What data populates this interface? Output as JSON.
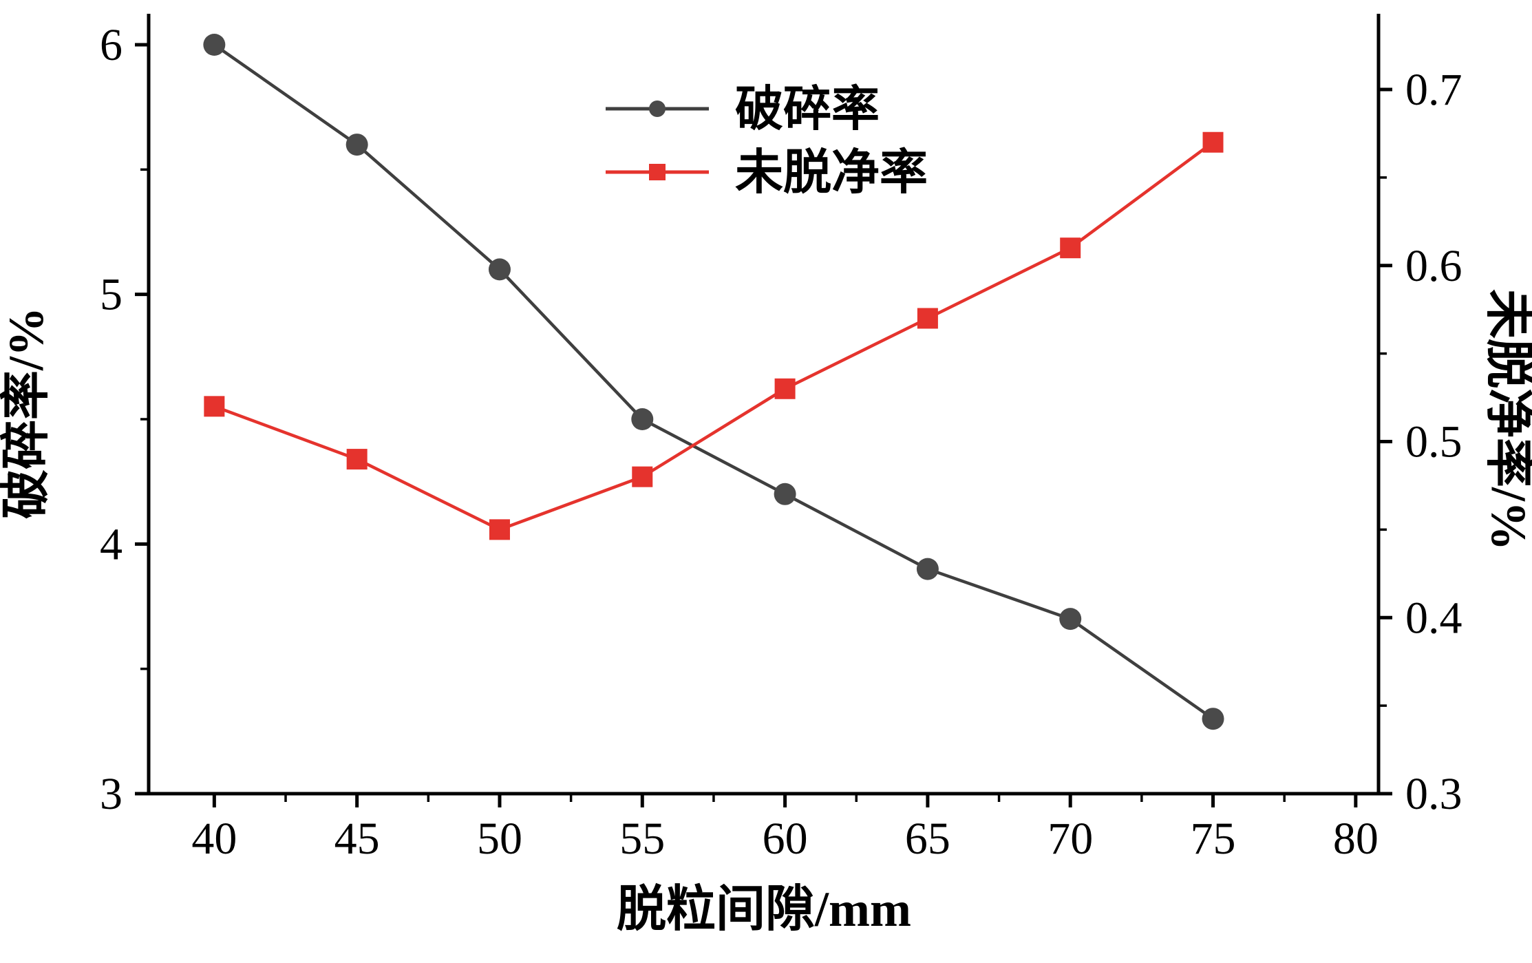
{
  "chart_data": {
    "type": "line",
    "x": [
      40,
      45,
      50,
      55,
      60,
      65,
      70,
      75
    ],
    "series": [
      {
        "name": "破碎率",
        "axis": "left",
        "line_color": "#3f3f3f",
        "marker": "circle",
        "marker_color": "#4a4a4a",
        "values": [
          6.0,
          5.6,
          5.1,
          4.5,
          4.2,
          3.9,
          3.7,
          3.3
        ]
      },
      {
        "name": "未脱净率",
        "axis": "right",
        "line_color": "#e5332d",
        "marker": "square",
        "marker_color": "#e5332d",
        "values": [
          0.52,
          0.49,
          0.45,
          0.48,
          0.53,
          0.57,
          0.61,
          0.67
        ]
      }
    ],
    "xlabel": "脱粒间隙/mm",
    "ylabel_left": "破碎率/%",
    "ylabel_right": "未脱净率/%",
    "xlim": [
      37.7,
      80.8
    ],
    "x_ticks": [
      40,
      45,
      50,
      55,
      60,
      65,
      70,
      75,
      80
    ],
    "ylim_left": [
      3,
      6
    ],
    "y_ticks_left": [
      3,
      4,
      5,
      6
    ],
    "ylim_right": [
      0.3,
      0.7
    ],
    "y_ticks_right": [
      0.3,
      0.4,
      0.5,
      0.6,
      0.7
    ],
    "grid": false,
    "legend_position": "top-center"
  },
  "colors": {
    "background": "#ffffff",
    "axis": "#000000",
    "tick_label": "#000000"
  }
}
